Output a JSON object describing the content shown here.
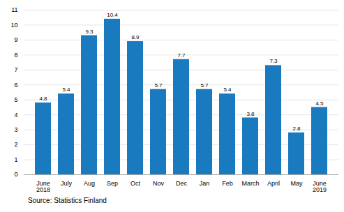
{
  "chart_data": {
    "type": "bar",
    "categories": [
      "June\n2018",
      "July",
      "Aug",
      "Sep",
      "Oct",
      "Nov",
      "Dec",
      "Jan",
      "Feb",
      "March",
      "April",
      "May",
      "June\n2019"
    ],
    "values": [
      4.8,
      5.4,
      9.3,
      10.4,
      8.9,
      5.7,
      7.7,
      5.7,
      5.4,
      3.8,
      7.3,
      2.8,
      4.5
    ],
    "color": "#1a7abf",
    "ylim": [
      0,
      11
    ],
    "yticks": [
      0,
      1,
      2,
      3,
      4,
      5,
      6,
      7,
      8,
      9,
      10,
      11
    ],
    "grid": true,
    "data_labels": true,
    "annotations": [
      "Source: Statistics Finland"
    ]
  }
}
